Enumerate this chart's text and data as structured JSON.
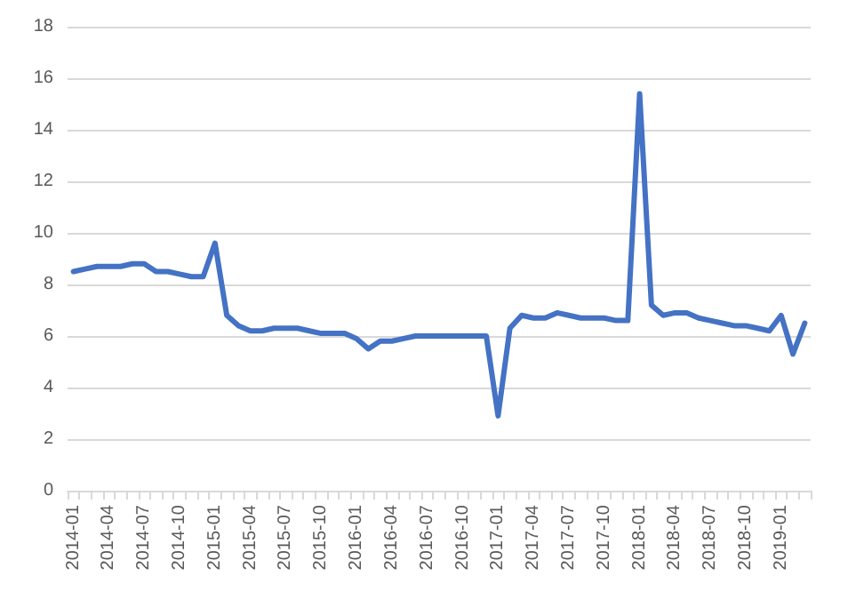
{
  "chart_data": {
    "type": "line",
    "categories": [
      "2014-01",
      null,
      null,
      "2014-04",
      null,
      null,
      "2014-07",
      null,
      null,
      "2014-10",
      null,
      null,
      "2015-01",
      null,
      null,
      "2015-04",
      null,
      null,
      "2015-07",
      null,
      null,
      "2015-10",
      null,
      null,
      "2016-01",
      null,
      null,
      "2016-04",
      null,
      null,
      "2016-07",
      null,
      null,
      "2016-10",
      null,
      null,
      "2017-01",
      null,
      null,
      "2017-04",
      null,
      null,
      "2017-07",
      null,
      null,
      "2017-10",
      null,
      null,
      "2018-01",
      null,
      null,
      "2018-04",
      null,
      null,
      "2018-07",
      null,
      null,
      "2018-10",
      null,
      null,
      "2019-01",
      null,
      null
    ],
    "series": [
      {
        "color": "#4472c4",
        "values": [
          8.5,
          8.6,
          8.7,
          8.7,
          8.7,
          8.8,
          8.8,
          8.5,
          8.5,
          8.4,
          8.3,
          8.3,
          9.6,
          6.8,
          6.4,
          6.2,
          6.2,
          6.3,
          6.3,
          6.3,
          6.2,
          6.1,
          6.1,
          6.1,
          5.9,
          5.5,
          5.8,
          5.8,
          5.9,
          6.0,
          6.0,
          6.0,
          6.0,
          6.0,
          6.0,
          6.0,
          2.9,
          6.3,
          6.8,
          6.7,
          6.7,
          6.9,
          6.8,
          6.7,
          6.7,
          6.7,
          6.6,
          6.6,
          15.4,
          7.2,
          6.8,
          6.9,
          6.9,
          6.7,
          6.6,
          6.5,
          6.4,
          6.4,
          6.3,
          6.2,
          6.8,
          5.3,
          6.5
        ]
      }
    ],
    "ylim": [
      0,
      18
    ],
    "yticks": [
      0,
      2,
      4,
      6,
      8,
      10,
      12,
      14,
      16,
      18
    ],
    "grid": "y",
    "marker": "none",
    "line_style": "solid"
  }
}
